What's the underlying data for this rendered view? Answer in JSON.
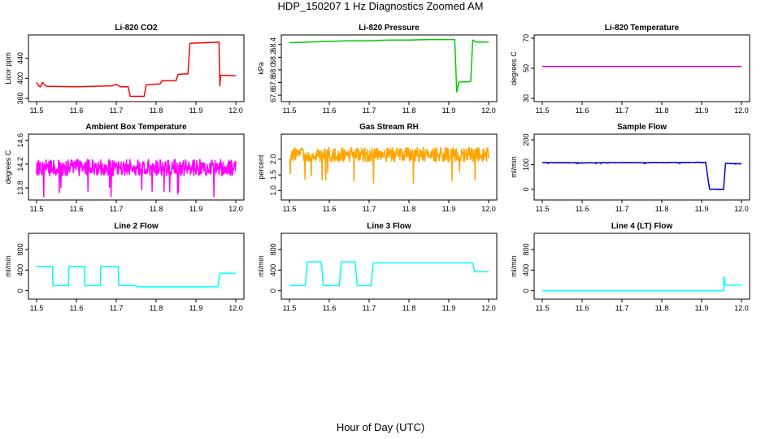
{
  "window_title": "HDP_150207  1 Hz Diagnostics Zoomed AM",
  "x_axis_label": "Hour of Day (UTC)",
  "chart_data": [
    {
      "type": "line",
      "title": "Li-820 CO2",
      "ylabel": "Licor ppm",
      "xlim": [
        11.5,
        12.0
      ],
      "ylim": [
        360,
        480
      ],
      "xticks": [
        11.5,
        11.6,
        11.7,
        11.8,
        11.9,
        12.0
      ],
      "yticks": [
        360,
        400,
        440
      ],
      "series": [
        {
          "color": "#ff0000",
          "noise": 0,
          "x": [
            11.5,
            11.505,
            11.51,
            11.515,
            11.52,
            11.525,
            11.53,
            11.6,
            11.69,
            11.7,
            11.71,
            11.73,
            11.735,
            11.77,
            11.775,
            11.81,
            11.815,
            11.85,
            11.855,
            11.88,
            11.885,
            11.958,
            11.96,
            11.962,
            11.965,
            12.0
          ],
          "y": [
            392,
            385,
            383,
            392,
            387,
            384,
            384,
            383,
            385,
            388,
            383,
            383,
            364,
            364,
            387,
            389,
            395,
            395,
            408,
            409,
            470,
            472,
            385,
            406,
            406,
            405
          ]
        }
      ]
    },
    {
      "type": "line",
      "title": "Li-820 Pressure",
      "ylabel": "kPa",
      "xlim": [
        11.5,
        12.0
      ],
      "ylim": [
        67.55,
        68.5
      ],
      "xticks": [
        11.5,
        11.6,
        11.7,
        11.8,
        11.9,
        12.0
      ],
      "yticks": [
        67.6,
        67.8,
        68.0,
        68.2,
        68.4
      ],
      "series": [
        {
          "color": "#00cc00",
          "noise": 0,
          "x": [
            11.5,
            11.55,
            11.6,
            11.65,
            11.7,
            11.75,
            11.8,
            11.85,
            11.9,
            11.915,
            11.92,
            11.925,
            11.93,
            11.95,
            11.955,
            11.96,
            11.965,
            11.97,
            12.0
          ],
          "y": [
            68.43,
            68.44,
            68.45,
            68.46,
            68.46,
            68.47,
            68.47,
            68.48,
            68.48,
            68.48,
            67.65,
            67.8,
            67.81,
            67.81,
            67.82,
            68.47,
            68.45,
            68.44,
            68.44
          ]
        }
      ]
    },
    {
      "type": "line",
      "title": "Li-820 Temperature",
      "ylabel": "degrees C",
      "xlim": [
        11.5,
        12.0
      ],
      "ylim": [
        30,
        70
      ],
      "xticks": [
        11.5,
        11.6,
        11.7,
        11.8,
        11.9,
        12.0
      ],
      "yticks": [
        30,
        50,
        70
      ],
      "series": [
        {
          "color": "#cc00cc",
          "noise": 0,
          "x": [
            11.5,
            12.0
          ],
          "y": [
            51.2,
            51.2
          ]
        }
      ]
    },
    {
      "type": "line",
      "title": "Ambient Box Temperature",
      "ylabel": "degrees C",
      "xlim": [
        11.5,
        12.0
      ],
      "ylim": [
        13.65,
        14.65
      ],
      "xticks": [
        11.5,
        11.6,
        11.7,
        11.8,
        11.9,
        12.0
      ],
      "yticks": [
        13.8,
        14.2,
        14.6
      ],
      "series": [
        {
          "color": "#ff00ff",
          "noise": 0.28,
          "x": [
            11.5,
            12.0
          ],
          "y": [
            14.14,
            14.14
          ]
        }
      ]
    },
    {
      "type": "line",
      "title": "Gas Stream RH",
      "ylabel": "percent",
      "xlim": [
        11.5,
        12.0
      ],
      "ylim": [
        0.8,
        2.7
      ],
      "xticks": [
        11.5,
        11.6,
        11.7,
        11.8,
        11.9,
        12.0
      ],
      "yticks": [
        1.0,
        1.5,
        2.0
      ],
      "series": [
        {
          "color": "#ffa500",
          "noise": 0.45,
          "x": [
            11.5,
            12.0
          ],
          "y": [
            2.15,
            2.15
          ]
        }
      ]
    },
    {
      "type": "line",
      "title": "Sample Flow",
      "ylabel": "ml/min",
      "xlim": [
        11.5,
        12.0
      ],
      "ylim": [
        -30,
        210
      ],
      "xticks": [
        11.5,
        11.6,
        11.7,
        11.8,
        11.9,
        12.0
      ],
      "yticks": [
        0,
        100,
        200
      ],
      "series": [
        {
          "color": "#0000cc",
          "noise": 2,
          "x": [
            11.5,
            11.6,
            11.7,
            11.8,
            11.91,
            11.92,
            11.95,
            11.955,
            11.96,
            12.0
          ],
          "y": [
            108,
            107,
            108,
            108,
            109,
            0,
            0,
            0,
            105,
            103
          ]
        }
      ]
    },
    {
      "type": "line",
      "title": "Line 2 Flow",
      "ylabel": "ml/min",
      "xlim": [
        11.5,
        12.0
      ],
      "ylim": [
        -100,
        1050
      ],
      "xticks": [
        11.5,
        11.6,
        11.7,
        11.8,
        11.9,
        12.0
      ],
      "yticks": [
        0,
        400,
        800
      ],
      "series": [
        {
          "color": "#00ffff",
          "noise": 0,
          "x": [
            11.5,
            11.54,
            11.541,
            11.58,
            11.581,
            11.62,
            11.621,
            11.66,
            11.661,
            11.705,
            11.706,
            11.75,
            11.751,
            11.955,
            11.96,
            12.0
          ],
          "y": [
            470,
            470,
            100,
            100,
            470,
            470,
            100,
            100,
            470,
            470,
            100,
            100,
            75,
            75,
            340,
            340
          ]
        }
      ]
    },
    {
      "type": "line",
      "title": "Line 3 Flow",
      "ylabel": "ml/min",
      "xlim": [
        11.5,
        12.0
      ],
      "ylim": [
        -100,
        1050
      ],
      "xticks": [
        11.5,
        11.6,
        11.7,
        11.8,
        11.9,
        12.0
      ],
      "yticks": [
        0,
        400,
        800
      ],
      "series": [
        {
          "color": "#00ffff",
          "noise": 0,
          "x": [
            11.5,
            11.54,
            11.545,
            11.58,
            11.585,
            11.625,
            11.63,
            11.665,
            11.67,
            11.705,
            11.71,
            11.96,
            11.965,
            12.0
          ],
          "y": [
            100,
            100,
            560,
            560,
            100,
            100,
            560,
            560,
            100,
            100,
            540,
            540,
            370,
            370
          ]
        }
      ]
    },
    {
      "type": "line",
      "title": "Line 4 (LT) Flow",
      "ylabel": "ml/min",
      "xlim": [
        11.5,
        12.0
      ],
      "ylim": [
        -100,
        1050
      ],
      "xticks": [
        11.5,
        11.6,
        11.7,
        11.8,
        11.9,
        12.0
      ],
      "yticks": [
        0,
        400,
        800
      ],
      "series": [
        {
          "color": "#00ffff",
          "noise": 0,
          "x": [
            11.5,
            11.955,
            11.956,
            11.96,
            11.962,
            12.0
          ],
          "y": [
            0,
            0,
            280,
            100,
            110,
            110
          ]
        }
      ]
    }
  ]
}
